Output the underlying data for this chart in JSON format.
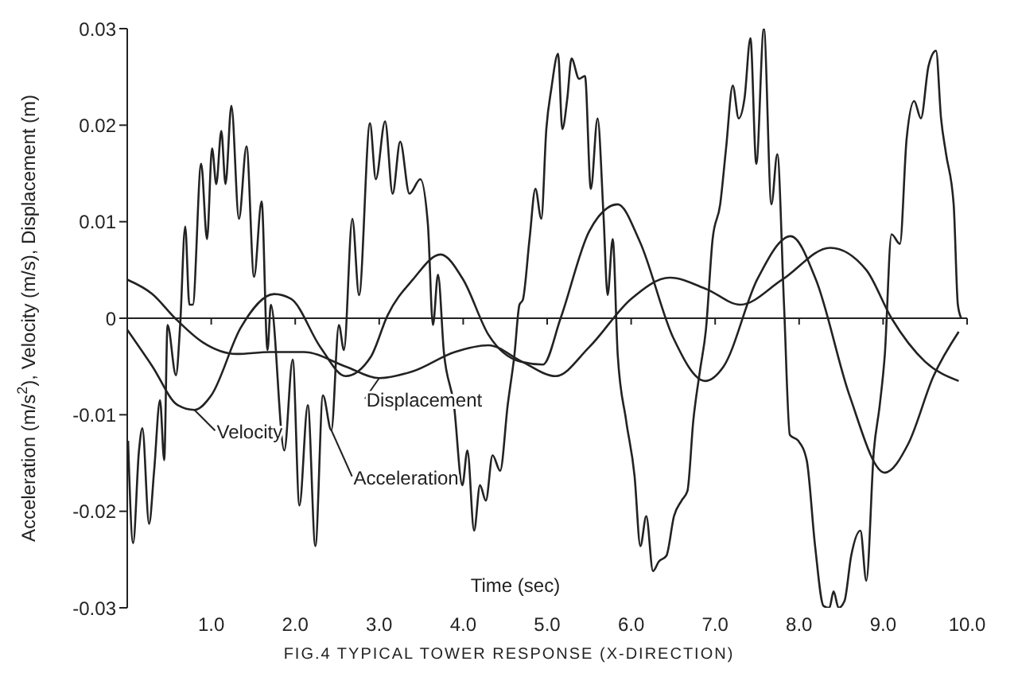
{
  "chart_data": {
    "type": "line",
    "title": "FIG.4  TYPICAL TOWER RESPONSE (X-DIRECTION)",
    "xlabel": "Time (sec)",
    "ylabel": "Acceleration (m/s$^{2}$), Velocity (m/s), Displacement (m)",
    "xlim": [
      0,
      10
    ],
    "xticks": [
      {
        "value": 1,
        "label": "1.0"
      },
      {
        "value": 2,
        "label": "2.0"
      },
      {
        "value": 3,
        "label": "3.0"
      },
      {
        "value": 4,
        "label": "4.0"
      },
      {
        "value": 5,
        "label": "5.0"
      },
      {
        "value": 6,
        "label": "6.0"
      },
      {
        "value": 7,
        "label": "7.0"
      },
      {
        "value": 8,
        "label": "8.0"
      },
      {
        "value": 9,
        "label": "9.0"
      },
      {
        "value": 10,
        "label": "10.0"
      }
    ],
    "ylim": [
      -0.03,
      0.03
    ],
    "yticks": [
      -0.03,
      -0.02,
      -0.01,
      0,
      0.01,
      0.02,
      0.03
    ],
    "marker": "none",
    "line_style": "solid",
    "series": [
      {
        "name": "Acceleration",
        "color": "#222222",
        "x": [
          0.01,
          0.07,
          0.14,
          0.18,
          0.26,
          0.32,
          0.39,
          0.44,
          0.48,
          0.58,
          0.63,
          0.69,
          0.74,
          0.78,
          0.88,
          0.95,
          1.01,
          1.06,
          1.12,
          1.17,
          1.24,
          1.33,
          1.42,
          1.51,
          1.6,
          1.67,
          1.71,
          1.87,
          1.97,
          2.05,
          2.15,
          2.24,
          2.33,
          2.43,
          2.52,
          2.58,
          2.68,
          2.76,
          2.89,
          2.96,
          3.07,
          3.16,
          3.25,
          3.36,
          3.49,
          3.58,
          3.64,
          3.7,
          3.77,
          3.89,
          3.99,
          4.05,
          4.13,
          4.2,
          4.27,
          4.35,
          4.44,
          4.53,
          4.61,
          4.67,
          4.71,
          4.79,
          4.86,
          4.93,
          4.99,
          5.05,
          5.13,
          5.18,
          5.24,
          5.29,
          5.38,
          5.45,
          5.52,
          5.6,
          5.67,
          5.72,
          5.78,
          5.84,
          5.94,
          6.04,
          6.11,
          6.18,
          6.26,
          6.33,
          6.42,
          6.51,
          6.6,
          6.67,
          6.74,
          6.82,
          6.89,
          6.97,
          7.06,
          7.13,
          7.21,
          7.28,
          7.35,
          7.42,
          7.49,
          7.58,
          7.67,
          7.74,
          7.82,
          7.89,
          7.99,
          8.09,
          8.19,
          8.29,
          8.36,
          8.41,
          8.47,
          8.54,
          8.62,
          8.73,
          8.8,
          8.89,
          8.96,
          9.02,
          9.1,
          9.2,
          9.28,
          9.37,
          9.45,
          9.54,
          9.63,
          9.69,
          9.75,
          9.84,
          9.89,
          9.93
        ],
        "values": [
          -0.0127,
          -0.0233,
          -0.0137,
          -0.0114,
          -0.0213,
          -0.0158,
          -0.0085,
          -0.0147,
          -0.0007,
          -0.0059,
          -0.0007,
          0.0095,
          0.0014,
          0.0014,
          0.016,
          0.0082,
          0.0176,
          0.0139,
          0.0194,
          0.0139,
          0.022,
          0.0103,
          0.0178,
          0.0043,
          0.0121,
          -0.0033,
          0.0014,
          -0.0137,
          -0.0043,
          -0.0194,
          -0.009,
          -0.0236,
          -0.008,
          -0.0116,
          -0.0007,
          -0.0033,
          0.0103,
          0.0024,
          0.0202,
          0.0144,
          0.0204,
          0.0129,
          0.0183,
          0.0129,
          0.0144,
          0.0097,
          -0.0007,
          0.0045,
          -0.0035,
          -0.009,
          -0.0173,
          -0.0137,
          -0.022,
          -0.0173,
          -0.0189,
          -0.0142,
          -0.0158,
          -0.009,
          -0.0038,
          0.0014,
          0.0019,
          0.0082,
          0.0134,
          0.0103,
          0.0196,
          0.0238,
          0.0274,
          0.0196,
          0.0228,
          0.0269,
          0.0248,
          0.0251,
          0.0134,
          0.0207,
          0.0108,
          0.0024,
          0.0082,
          -0.0038,
          -0.0106,
          -0.0163,
          -0.0236,
          -0.0205,
          -0.0262,
          -0.0252,
          -0.0246,
          -0.0205,
          -0.0189,
          -0.0179,
          -0.0106,
          -0.0054,
          -0.0012,
          0.0082,
          0.0118,
          0.0176,
          0.0241,
          0.0207,
          0.0228,
          0.029,
          0.016,
          0.03,
          0.0118,
          0.017,
          0.0014,
          -0.0121,
          -0.0127,
          -0.0147,
          -0.0236,
          -0.0298,
          -0.03,
          -0.0283,
          -0.03,
          -0.0293,
          -0.0246,
          -0.022,
          -0.0272,
          -0.0137,
          -0.009,
          -0.0038,
          0.0087,
          0.0077,
          0.0186,
          0.0225,
          0.0207,
          0.0261,
          0.0277,
          0.0207,
          0.017,
          0.0118,
          0.0014,
          0
        ]
      },
      {
        "name": "Velocity",
        "color": "#222222",
        "x": [
          0,
          0.3,
          0.6,
          0.8,
          1.0,
          1.35,
          1.75,
          1.95,
          2.3,
          2.6,
          2.9,
          3.1,
          3.4,
          3.73,
          4.0,
          4.3,
          4.68,
          4.95,
          5.16,
          5.5,
          5.84,
          6.1,
          6.5,
          6.88,
          7.1,
          7.5,
          7.9,
          8.2,
          8.6,
          9.02,
          9.3,
          9.6,
          9.9
        ],
        "values": [
          -0.0012,
          -0.005,
          -0.009,
          -0.0095,
          -0.008,
          -0.001,
          0.0025,
          0.002,
          -0.003,
          -0.006,
          -0.004,
          0.0003,
          0.004,
          0.0066,
          0.004,
          -0.0017,
          -0.0045,
          -0.0048,
          0,
          0.009,
          0.0118,
          0.008,
          -0.002,
          -0.0065,
          -0.005,
          0.004,
          0.0085,
          0.004,
          -0.008,
          -0.016,
          -0.013,
          -0.006,
          -0.0014
        ]
      },
      {
        "name": "Displacement",
        "color": "#222222",
        "x": [
          0,
          0.3,
          0.57,
          0.9,
          1.3,
          1.7,
          2.1,
          2.6,
          3.0,
          3.4,
          3.9,
          4.3,
          4.7,
          5.1,
          5.5,
          6.0,
          6.46,
          6.9,
          7.3,
          7.8,
          8.37,
          8.8,
          9.1,
          9.5,
          9.9
        ],
        "values": [
          0.004,
          0.0025,
          0,
          -0.0025,
          -0.0037,
          -0.0035,
          -0.0035,
          -0.005,
          -0.0062,
          -0.0055,
          -0.0035,
          -0.0028,
          -0.0045,
          -0.006,
          -0.003,
          0.002,
          0.0042,
          0.003,
          0.0014,
          0.004,
          0.0073,
          0.005,
          0,
          -0.0045,
          -0.0065
        ]
      }
    ]
  }
}
